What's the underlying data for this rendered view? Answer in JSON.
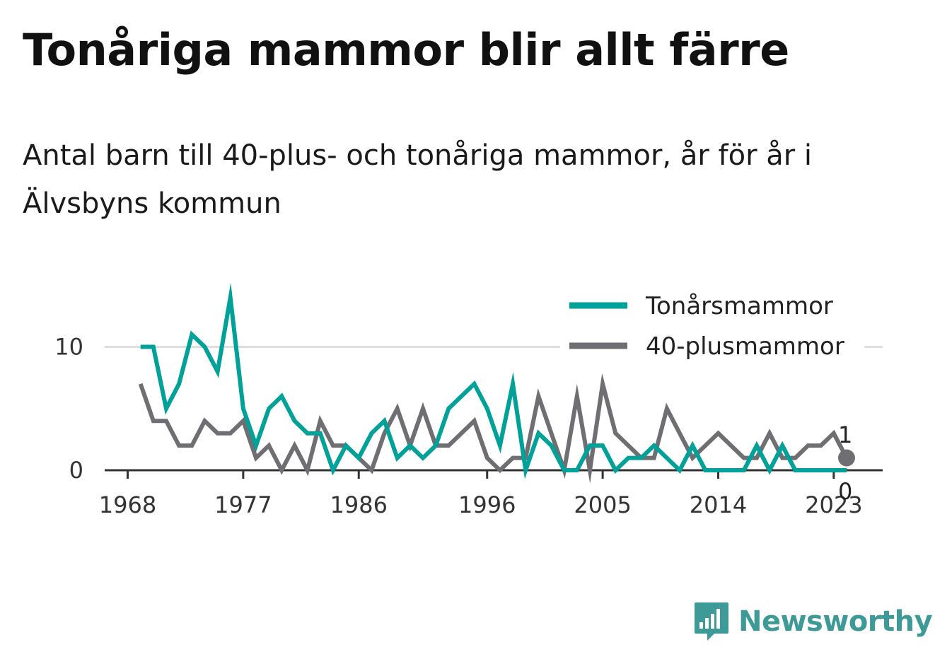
{
  "header": {
    "title": "Tonåriga mammor blir allt färre",
    "subtitle": "Antal barn till 40-plus- och tonåriga mammor, år för år i Älvsbyns kommun"
  },
  "brand": {
    "name": "Newsworthy",
    "color": "#3d9a96"
  },
  "chart_data": {
    "type": "line",
    "title": "",
    "xlabel": "",
    "ylabel": "",
    "x_ticks": [
      1968,
      1977,
      1986,
      1996,
      2005,
      2014,
      2023
    ],
    "y_ticks": [
      0,
      10
    ],
    "ylim": [
      0,
      14.5
    ],
    "xlim": [
      1968,
      2024
    ],
    "grid": true,
    "legend": "top-right",
    "x": [
      1969,
      1970,
      1971,
      1972,
      1973,
      1974,
      1975,
      1976,
      1977,
      1978,
      1979,
      1980,
      1981,
      1982,
      1983,
      1984,
      1985,
      1986,
      1987,
      1988,
      1989,
      1990,
      1991,
      1992,
      1993,
      1994,
      1995,
      1996,
      1997,
      1998,
      1999,
      2000,
      2001,
      2002,
      2003,
      2004,
      2005,
      2006,
      2007,
      2008,
      2009,
      2010,
      2011,
      2012,
      2013,
      2014,
      2015,
      2016,
      2017,
      2018,
      2019,
      2020,
      2021,
      2022,
      2023,
      2024
    ],
    "series": [
      {
        "name": "Tonårsmammor",
        "color": "#00a199",
        "values": [
          10,
          10,
          5,
          7,
          11,
          10,
          8,
          14,
          5,
          2,
          5,
          6,
          4,
          3,
          3,
          0,
          2,
          1,
          3,
          4,
          1,
          2,
          1,
          2,
          5,
          6,
          7,
          5,
          2,
          7,
          0,
          3,
          2,
          0,
          0,
          2,
          2,
          0,
          1,
          1,
          2,
          1,
          0,
          2,
          0,
          0,
          0,
          0,
          2,
          0,
          2,
          0,
          0,
          0,
          0,
          0
        ],
        "end_label": "0"
      },
      {
        "name": "40-plusmammor",
        "color": "#6e6e73",
        "values": [
          7,
          4,
          4,
          2,
          2,
          4,
          3,
          3,
          4,
          1,
          2,
          0,
          2,
          0,
          4,
          2,
          2,
          1,
          0,
          3,
          5,
          2,
          5,
          2,
          2,
          3,
          4,
          1,
          0,
          1,
          1,
          6,
          3,
          0,
          6,
          0,
          7,
          3,
          2,
          1,
          1,
          5,
          3,
          1,
          2,
          3,
          2,
          1,
          1,
          3,
          1,
          1,
          2,
          2,
          3,
          1
        ],
        "end_label": "1"
      }
    ]
  }
}
